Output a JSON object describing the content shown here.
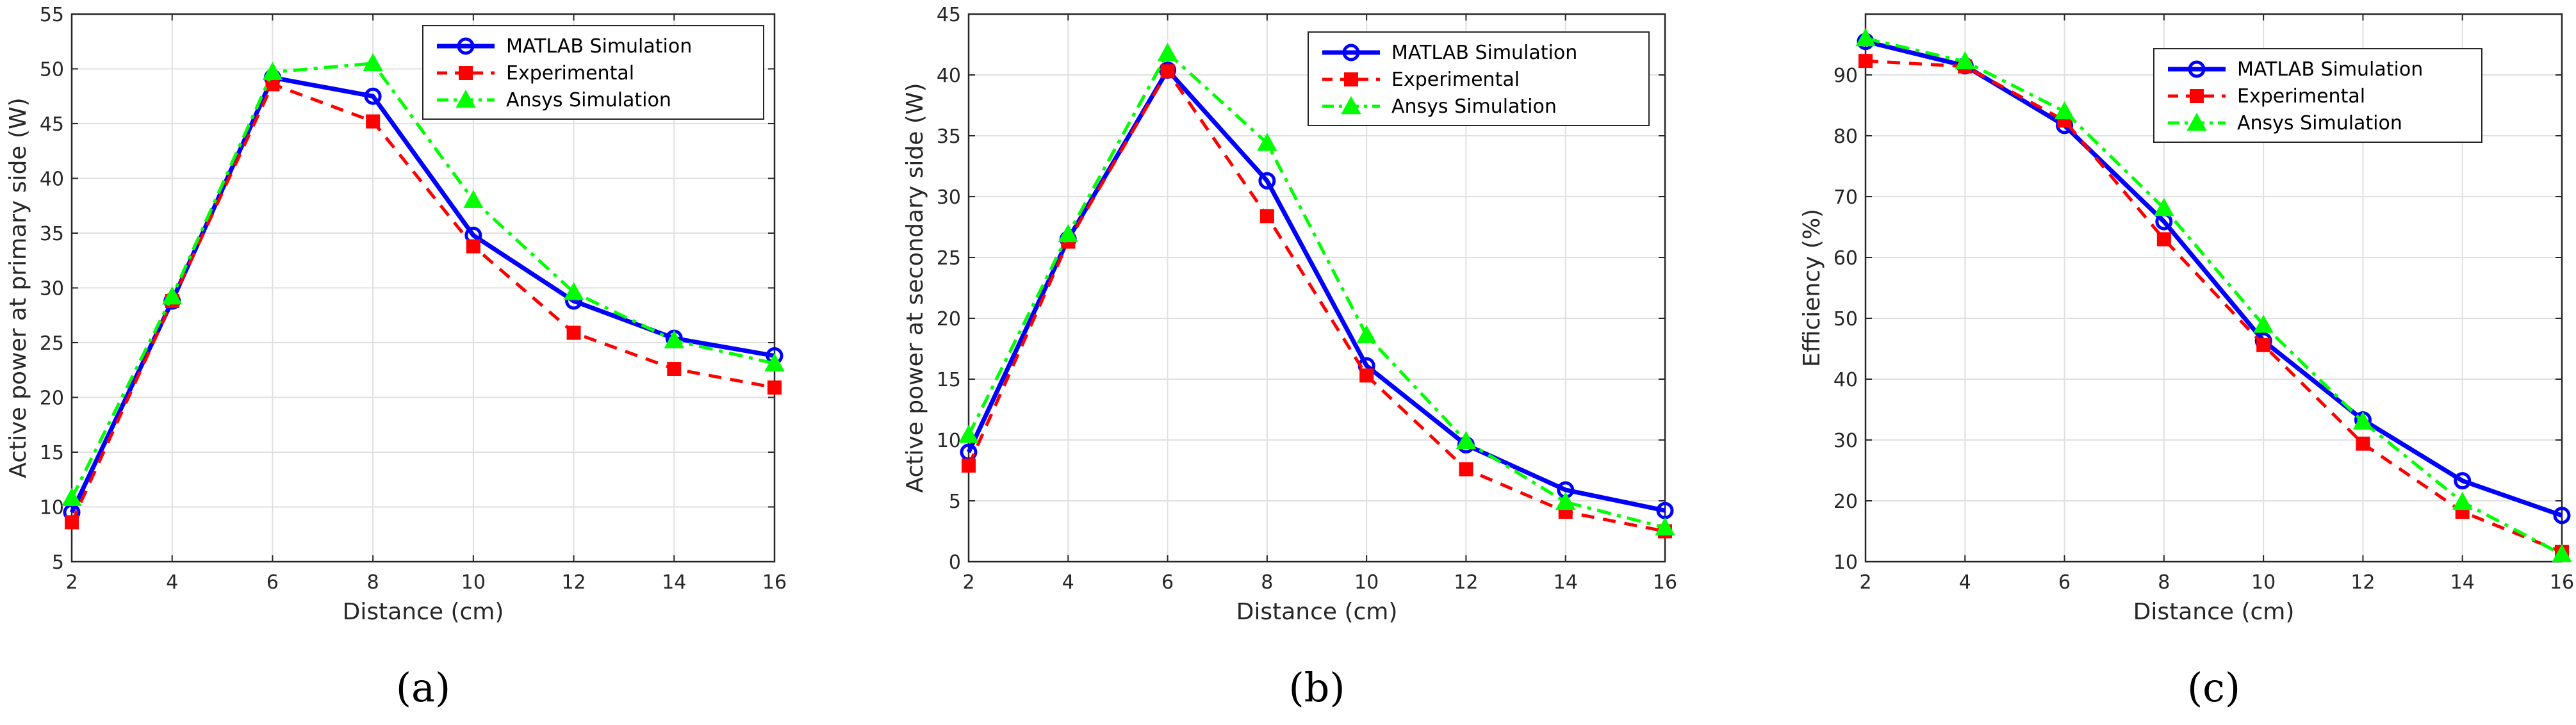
{
  "colors": {
    "matlab": "#0000ff",
    "experimental": "#ff0000",
    "ansys": "#00ff00",
    "grid": "#e0e0e0",
    "axis": "#262626"
  },
  "chart_data": [
    {
      "type": "line",
      "caption": "(a)",
      "xlabel": "Distance (cm)",
      "ylabel": "Active power at primary side (W)",
      "xlim": [
        2,
        16
      ],
      "ylim": [
        5,
        55
      ],
      "xticks": [
        2,
        4,
        6,
        8,
        10,
        12,
        14,
        16
      ],
      "yticks": [
        5,
        10,
        15,
        20,
        25,
        30,
        35,
        40,
        45,
        50,
        55
      ],
      "grid": true,
      "legend_position": "top-right",
      "x": [
        2,
        4,
        6,
        8,
        10,
        12,
        14,
        16
      ],
      "series": [
        {
          "name": "MATLAB Simulation",
          "marker": "circle",
          "style": "solid",
          "values": [
            9.5,
            28.8,
            49.2,
            47.5,
            34.8,
            28.8,
            25.4,
            23.8
          ]
        },
        {
          "name": "Experimental",
          "marker": "square",
          "style": "dashed",
          "values": [
            8.6,
            28.8,
            48.6,
            45.2,
            33.8,
            25.9,
            22.6,
            20.9
          ]
        },
        {
          "name": "Ansys Simulation",
          "marker": "triangle",
          "style": "dashdot",
          "values": [
            10.8,
            29.2,
            49.7,
            50.5,
            38.0,
            29.6,
            25.2,
            23.1
          ]
        }
      ]
    },
    {
      "type": "line",
      "caption": "(b)",
      "xlabel": "Distance (cm)",
      "ylabel": "Active power at secondary side (W)",
      "xlim": [
        2,
        16
      ],
      "ylim": [
        0,
        45
      ],
      "xticks": [
        2,
        4,
        6,
        8,
        10,
        12,
        14,
        16
      ],
      "yticks": [
        0,
        5,
        10,
        15,
        20,
        25,
        30,
        35,
        40,
        45
      ],
      "grid": true,
      "legend_position": "top-right",
      "x": [
        2,
        4,
        6,
        8,
        10,
        12,
        14,
        16
      ],
      "series": [
        {
          "name": "MATLAB Simulation",
          "marker": "circle",
          "style": "solid",
          "values": [
            9.0,
            26.5,
            40.4,
            31.3,
            16.1,
            9.6,
            5.9,
            4.2
          ]
        },
        {
          "name": "Experimental",
          "marker": "square",
          "style": "dashed",
          "values": [
            7.9,
            26.3,
            40.3,
            28.4,
            15.3,
            7.6,
            4.1,
            2.5
          ]
        },
        {
          "name": "Ansys Simulation",
          "marker": "triangle",
          "style": "dashdot",
          "values": [
            10.4,
            26.9,
            41.8,
            34.4,
            18.6,
            9.9,
            4.9,
            2.8
          ]
        }
      ]
    },
    {
      "type": "line",
      "caption": "(c)",
      "xlabel": "Distance (cm)",
      "ylabel": "Efficiency (%)",
      "xlim": [
        2,
        16
      ],
      "ylim": [
        10,
        100
      ],
      "xticks": [
        2,
        4,
        6,
        8,
        10,
        12,
        14,
        16
      ],
      "yticks": [
        10,
        20,
        30,
        40,
        50,
        60,
        70,
        80,
        90
      ],
      "grid": true,
      "legend_position": "top-right",
      "x": [
        2,
        4,
        6,
        8,
        10,
        12,
        14,
        16
      ],
      "series": [
        {
          "name": "MATLAB Simulation",
          "marker": "circle",
          "style": "solid",
          "values": [
            95.5,
            91.5,
            81.7,
            65.9,
            46.3,
            33.3,
            23.3,
            17.6
          ]
        },
        {
          "name": "Experimental",
          "marker": "square",
          "style": "dashed",
          "values": [
            92.3,
            91.4,
            82.5,
            63.0,
            45.6,
            29.4,
            18.2,
            11.6
          ]
        },
        {
          "name": "Ansys Simulation",
          "marker": "triangle",
          "style": "dashdot",
          "values": [
            96.0,
            92.2,
            84.0,
            68.1,
            48.9,
            33.0,
            19.8,
            11.2
          ]
        }
      ]
    }
  ]
}
